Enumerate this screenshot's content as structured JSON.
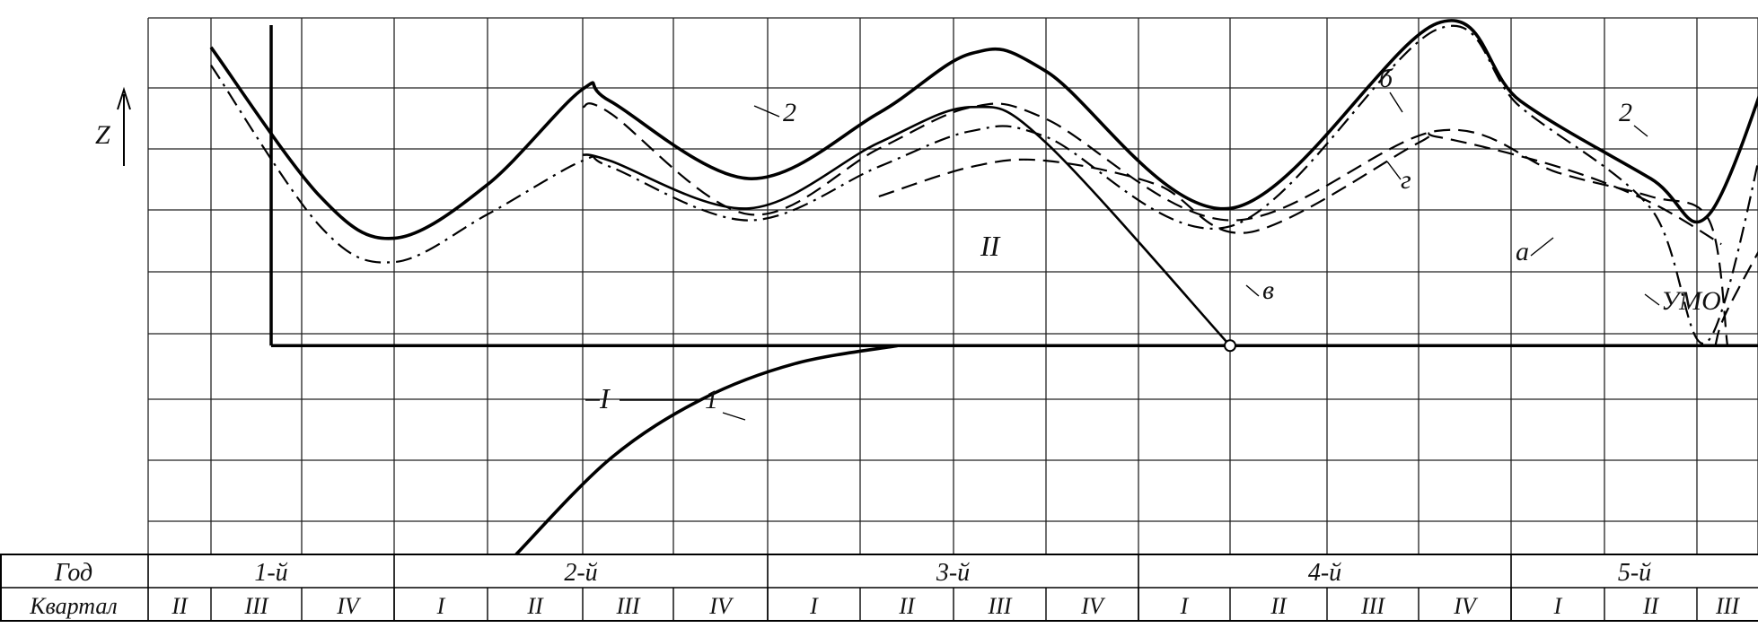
{
  "chart_data": {
    "type": "line",
    "axis_label_z": "Z",
    "table": {
      "row_labels": [
        "Год",
        "Квартал"
      ],
      "years": [
        "1-й",
        "2-й",
        "3-й",
        "4-й",
        "5-й"
      ],
      "quarters": [
        "II",
        "III",
        "IV",
        "I",
        "II",
        "III",
        "IV",
        "I",
        "II",
        "III",
        "IV",
        "I",
        "II",
        "III",
        "IV",
        "I",
        "II",
        "III"
      ],
      "quarter_years": [
        0,
        0,
        0,
        1,
        1,
        1,
        1,
        2,
        2,
        2,
        2,
        3,
        3,
        3,
        3,
        4,
        4,
        4
      ]
    },
    "ylim": [
      0,
      9
    ],
    "baseline_y": 3.5,
    "region_labels": [
      "I",
      "II"
    ],
    "curve_labels": [
      "1",
      "2",
      "2",
      "а",
      "б",
      "в",
      "г",
      "УМО"
    ],
    "series": [
      {
        "label": "2",
        "style": "solid-heavy",
        "x": [
          1.0,
          2.2,
          3.0,
          4.0,
          5.0,
          5.3,
          6.8,
          8.2,
          9.2,
          10.0,
          12.0,
          14.2,
          15.1,
          16.5,
          17.2,
          18.4
        ],
        "y": [
          8.5,
          6.0,
          5.3,
          6.2,
          7.8,
          7.6,
          6.3,
          7.4,
          8.4,
          8.1,
          5.8,
          8.9,
          7.6,
          6.3,
          5.7,
          8.8
        ]
      },
      {
        "label": "а",
        "style": "dash-dot",
        "x": [
          1.0,
          2.2,
          3.0,
          4.0,
          5.0,
          5.3,
          6.8,
          8.2,
          9.2,
          10.0,
          12.0,
          14.2,
          15.1,
          16.5,
          17.2,
          18.4
        ],
        "y": [
          8.2,
          5.5,
          4.9,
          5.7,
          6.6,
          6.5,
          5.6,
          6.5,
          7.1,
          7.0,
          5.5,
          8.8,
          7.5,
          5.8,
          3.6,
          8.5
        ]
      },
      {
        "label": "б",
        "style": "dashed",
        "x": [
          5.0,
          5.3,
          6.8,
          8.2,
          9.2,
          10.0,
          12.0,
          14.2,
          15.5,
          16.5,
          17.2,
          17.5
        ],
        "y": [
          7.5,
          7.4,
          5.7,
          6.8,
          7.5,
          7.3,
          5.6,
          7.1,
          6.4,
          6.0,
          5.6,
          3.5
        ]
      },
      {
        "label": "в",
        "style": "solid",
        "x": [
          5.0,
          5.3,
          6.8,
          8.2,
          9.2,
          10.0,
          12.0
        ],
        "y": [
          6.7,
          6.6,
          5.8,
          6.9,
          7.5,
          6.9,
          3.5
        ]
      },
      {
        "label": "г",
        "style": "dashed",
        "x": [
          8.2,
          9.2,
          10.0,
          11.2,
          12.2,
          14.0,
          14.2,
          15.5,
          16.5,
          17.4
        ],
        "y": [
          6.0,
          6.5,
          6.6,
          6.2,
          5.4,
          6.9,
          7.0,
          6.5,
          5.9,
          5.2
        ]
      },
      {
        "label": "УМО",
        "style": "dashed",
        "x": [
          17.3,
          17.5,
          18.4
        ],
        "y": [
          3.5,
          4.1,
          5.8
        ]
      },
      {
        "label": "1",
        "style": "solid-heavy",
        "x": [
          4.3,
          5.3,
          6.3,
          7.3,
          8.4
        ],
        "y": [
          0.0,
          1.6,
          2.6,
          3.2,
          3.5
        ]
      }
    ]
  }
}
